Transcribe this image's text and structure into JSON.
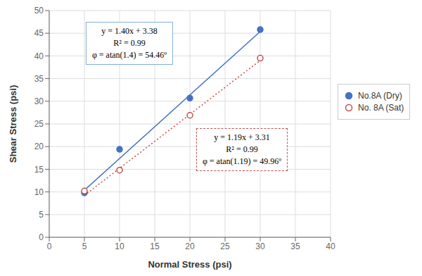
{
  "chart_data": {
    "type": "scatter",
    "xlabel": "Normal Stress (psi)",
    "ylabel": "Shear Stress (psi)",
    "xlim": [
      0,
      40
    ],
    "ylim": [
      0,
      50
    ],
    "xticks": [
      0,
      5,
      10,
      15,
      20,
      25,
      30,
      35,
      40
    ],
    "yticks": [
      0,
      5,
      10,
      15,
      20,
      25,
      30,
      35,
      40,
      45,
      50
    ],
    "grid": true,
    "legend": "right",
    "series": [
      {
        "name": "No.8A (Dry)",
        "type": "scatter",
        "color": "#4472C4",
        "marker": "circle",
        "x": [
          5,
          10,
          20,
          30
        ],
        "values": [
          9.8,
          19.4,
          30.7,
          45.8
        ]
      },
      {
        "name": "No. 8A (Sat)",
        "type": "scatter",
        "color": "#C0504D",
        "marker": "open_circle",
        "x": [
          5,
          10,
          20,
          30
        ],
        "values": [
          10.2,
          14.8,
          26.9,
          39.5
        ]
      },
      {
        "type": "line",
        "color": "#4472C4",
        "line_style": "solid",
        "x": [
          5,
          30
        ],
        "values": [
          10.38,
          45.38
        ]
      },
      {
        "type": "line",
        "color": "#C0504D",
        "line_style": "dotted",
        "x": [
          5,
          30
        ],
        "values": [
          9.26,
          39.01
        ]
      }
    ],
    "annotations": [
      {
        "text": "y = 1.40x + 3.38\nR² = 0.99\nφ = atan(1.4) = 54.46º",
        "color": "#7FB0DC"
      },
      {
        "text": "y = 1.19x + 3.31\nR² = 0.99\nφ = atan(1.19) = 49.96º",
        "color": "#C0504D"
      }
    ]
  }
}
